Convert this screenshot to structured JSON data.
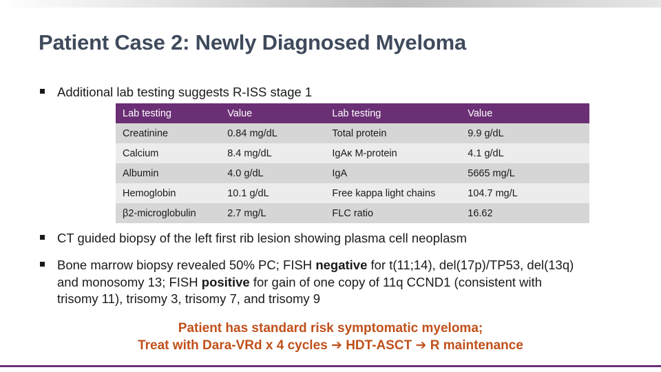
{
  "title": "Patient Case 2: Newly Diagnosed Myeloma",
  "bullet1": "Additional lab testing suggests R-ISS stage 1",
  "table": {
    "headers": [
      "Lab testing",
      "Value",
      "Lab testing",
      "Value"
    ],
    "rows": [
      [
        "Creatinine",
        "0.84 mg/dL",
        "Total protein",
        "9.9 g/dL"
      ],
      [
        "Calcium",
        "8.4 mg/dL",
        "IgAκ M-protein",
        "4.1 g/dL"
      ],
      [
        "Albumin",
        "4.0 g/dL",
        "IgA",
        "5665 mg/L"
      ],
      [
        "Hemoglobin",
        "10.1 g/dL",
        "Free kappa light chains",
        "104.7 mg/L"
      ],
      [
        "β2-microglobulin",
        "2.7 mg/L",
        "FLC ratio",
        "16.62"
      ]
    ]
  },
  "bullet2": "CT guided biopsy of the left first rib lesion showing plasma cell neoplasm",
  "bullet3": {
    "p1": "Bone marrow biopsy revealed 50% PC; FISH ",
    "b1": "negative",
    "p2": " for t(11;14), del(17p)/TP53, del(13q) and monosomy 13; FISH ",
    "b2": "positive",
    "p3": " for gain of one copy of 11q CCND1 (consistent with trisomy 11), trisomy 3, trisomy 7, and trisomy 9"
  },
  "conclusion": {
    "line1": "Patient has standard risk symptomatic myeloma;",
    "line2_a": "Treat with Dara-VRd x 4 cycles",
    "arrow": "➔",
    "line2_b": "HDT-ASCT",
    "line2_c": "R maintenance"
  },
  "colors": {
    "title": "#3f4a5c",
    "header": "#6b2f75",
    "conclusion": "#c0501b",
    "row_dark": "#d6d6d6",
    "row_light": "#ececec"
  }
}
